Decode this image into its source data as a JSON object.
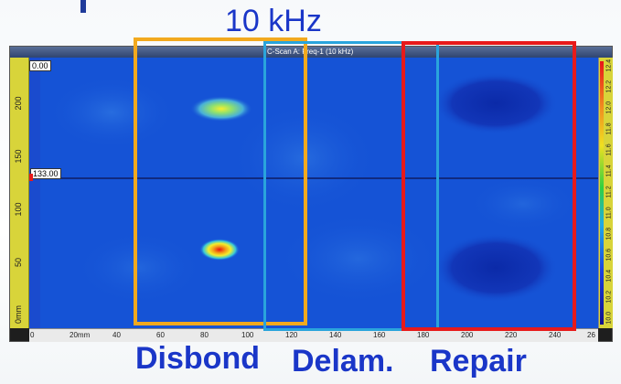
{
  "slide": {
    "frequency_title": "10 kHz"
  },
  "window": {
    "title": "C-Scan A: Freq-1 (10 kHz)"
  },
  "cursor_readouts": {
    "top_left": "0.00",
    "horizontal_cursor": "133.00"
  },
  "vertical_ruler": {
    "ticks": [
      "0mm",
      "50",
      "100",
      "150",
      "200"
    ]
  },
  "horizontal_ruler": {
    "ticks": [
      "0",
      "20mm",
      "40",
      "60",
      "80",
      "100",
      "120",
      "140",
      "160",
      "180",
      "200",
      "220",
      "240",
      "26"
    ]
  },
  "colorbar": {
    "labels": [
      "10.0",
      "10.2",
      "10.4",
      "10.6",
      "10.8",
      "11.0",
      "11.2",
      "11.4",
      "11.6",
      "11.8",
      "12.0",
      "12.2",
      "12.4"
    ]
  },
  "regions": {
    "disbond_label": "Disbond",
    "delam_label": "Delam.",
    "repair_label": "Repair"
  },
  "colors": {
    "disbond_box": "#f2a91e",
    "delam_box": "#2aa4dc",
    "repair_box": "#e81a1a",
    "label_text": "#1a36c8",
    "scan_background": "#1553d6"
  }
}
